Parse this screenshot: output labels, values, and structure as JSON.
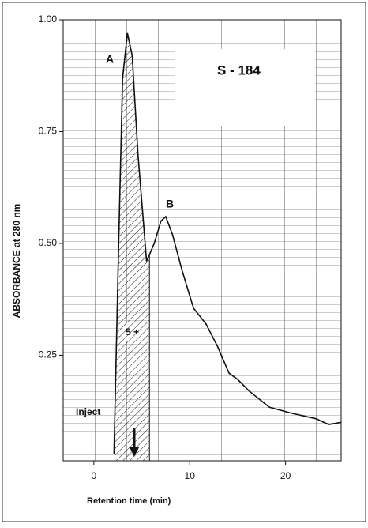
{
  "chart_data": {
    "type": "line",
    "x_label": "Retention time  (min)",
    "y_label": "ABSORBANCE  at 280 nm",
    "annotations": [
      "A",
      "B",
      "S - 184",
      "Inject",
      "5 +"
    ],
    "x": [
      2.1,
      2.6,
      3.0,
      3.5,
      4.0,
      4.6,
      5.5,
      6.3,
      7.0,
      7.5,
      8.2,
      9.2,
      10.4,
      11.7,
      12.9,
      14.1,
      15.0,
      16.2,
      18.3,
      20.7,
      23.2,
      24.5,
      25.8
    ],
    "values": [
      0.03,
      0.51,
      0.87,
      0.97,
      0.92,
      0.7,
      0.46,
      0.5,
      0.55,
      0.56,
      0.52,
      0.44,
      0.355,
      0.32,
      0.27,
      0.21,
      0.196,
      0.17,
      0.134,
      0.12,
      0.108,
      0.095,
      0.1
    ],
    "color": "#111111",
    "shade_x": [
      2.2,
      5.8
    ],
    "xlim": [
      -3.2,
      25.8
    ],
    "ylim": [
      0.014,
      1.0
    ],
    "xticks": [
      0,
      10,
      20
    ],
    "yticks": [
      0.25,
      {
        "value": 0.5,
        "label": "0.50"
      },
      0.75,
      {
        "value": 1,
        "label": "1.00"
      }
    ]
  }
}
